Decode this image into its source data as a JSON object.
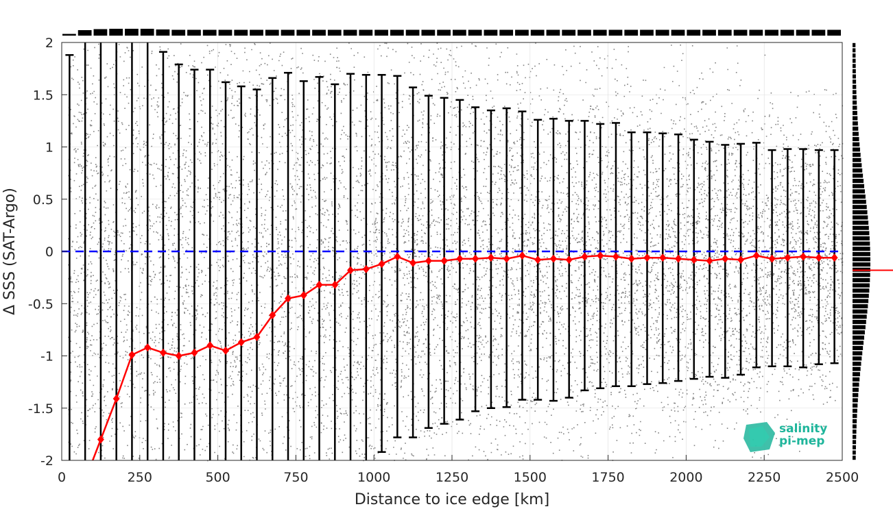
{
  "chart_data": {
    "type": "scatter",
    "title": "",
    "xlabel": "Distance to ice edge [km]",
    "ylabel": "Δ SSS (SAT-Argo)",
    "xlim": [
      0,
      2500
    ],
    "ylim": [
      -2,
      2
    ],
    "xticks": [
      0,
      250,
      500,
      750,
      1000,
      1250,
      1500,
      1750,
      2000,
      2250,
      2500
    ],
    "xtick_labels": [
      "0",
      "250",
      "500",
      "750",
      "1000",
      "1250",
      "1500",
      "1750",
      "2000",
      "2250",
      "2500"
    ],
    "yticks": [
      2,
      1.5,
      1,
      0.5,
      0,
      -0.5,
      -1,
      -1.5,
      -2
    ],
    "ytick_labels": [
      "2",
      "1.5",
      "1",
      "0.5",
      "0",
      "-0.5",
      "-1",
      "-1.5",
      "-2"
    ],
    "grid": true,
    "scatter_color": "#808080",
    "zero_line": {
      "y": 0,
      "color": "#0000ff",
      "style": "dashed"
    },
    "mean_series": {
      "color": "#ff0000",
      "x": [
        125,
        175,
        225,
        275,
        325,
        375,
        425,
        475,
        525,
        575,
        625,
        675,
        725,
        775,
        825,
        875,
        925,
        975,
        1025,
        1075,
        1125,
        1175,
        1225,
        1275,
        1325,
        1375,
        1425,
        1475,
        1525,
        1575,
        1625,
        1675,
        1725,
        1775,
        1825,
        1875,
        1925,
        1975,
        2025,
        2075,
        2125,
        2175,
        2225,
        2275,
        2325,
        2375,
        2425,
        2475
      ],
      "y": [
        -1.8,
        -1.41,
        -0.99,
        -0.92,
        -0.97,
        -1.0,
        -0.97,
        -0.9,
        -0.95,
        -0.87,
        -0.82,
        -0.61,
        -0.45,
        -0.42,
        -0.32,
        -0.32,
        -0.18,
        -0.17,
        -0.12,
        -0.05,
        -0.11,
        -0.09,
        -0.09,
        -0.07,
        -0.07,
        -0.06,
        -0.07,
        -0.04,
        -0.08,
        -0.07,
        -0.08,
        -0.05,
        -0.04,
        -0.05,
        -0.07,
        -0.06,
        -0.06,
        -0.07,
        -0.08,
        -0.09,
        -0.07,
        -0.08,
        -0.04,
        -0.07,
        -0.06,
        -0.05,
        -0.06,
        -0.06
      ]
    },
    "error_bars": {
      "color": "#000000",
      "x": [
        25,
        75,
        125,
        175,
        225,
        275,
        325,
        375,
        425,
        475,
        525,
        575,
        625,
        675,
        725,
        775,
        825,
        875,
        925,
        975,
        1025,
        1075,
        1125,
        1175,
        1225,
        1275,
        1325,
        1375,
        1425,
        1475,
        1525,
        1575,
        1625,
        1675,
        1725,
        1775,
        1825,
        1875,
        1925,
        1975,
        2025,
        2075,
        2125,
        2175,
        2225,
        2275,
        2325,
        2375,
        2425,
        2475
      ],
      "upper": [
        1.88,
        2.0,
        2.0,
        2.0,
        2.0,
        2.0,
        1.91,
        1.79,
        1.74,
        1.74,
        1.62,
        1.58,
        1.55,
        1.66,
        1.71,
        1.63,
        1.67,
        1.6,
        1.7,
        1.69,
        1.69,
        1.68,
        1.57,
        1.49,
        1.47,
        1.45,
        1.38,
        1.35,
        1.37,
        1.34,
        1.26,
        1.27,
        1.25,
        1.25,
        1.22,
        1.23,
        1.14,
        1.14,
        1.13,
        1.12,
        1.07,
        1.05,
        1.02,
        1.03,
        1.04,
        0.97,
        0.98,
        0.98,
        0.97,
        0.97
      ],
      "lower": [
        -2.0,
        -2.0,
        -2.0,
        -2.0,
        -2.0,
        -2.0,
        -2.0,
        -2.0,
        -2.0,
        -2.0,
        -2.0,
        -2.0,
        -2.0,
        -2.0,
        -2.0,
        -2.0,
        -2.0,
        -2.0,
        -2.0,
        -2.0,
        -1.92,
        -1.78,
        -1.78,
        -1.69,
        -1.65,
        -1.61,
        -1.53,
        -1.5,
        -1.49,
        -1.42,
        -1.42,
        -1.43,
        -1.4,
        -1.33,
        -1.31,
        -1.29,
        -1.29,
        -1.27,
        -1.26,
        -1.24,
        -1.22,
        -1.2,
        -1.21,
        -1.18,
        -1.11,
        -1.1,
        -1.1,
        -1.11,
        -1.08,
        -1.07
      ]
    },
    "top_histogram": {
      "orientation": "vertical",
      "relative_heights": [
        0.25,
        0.8,
        0.95,
        1.0,
        1.0,
        1.0,
        0.9,
        0.85,
        0.85,
        0.85,
        0.85,
        0.85,
        0.85,
        0.85,
        0.85,
        0.85,
        0.85,
        0.85,
        0.85,
        0.85,
        0.85,
        0.85,
        0.85,
        0.85,
        0.85,
        0.85,
        0.85,
        0.85,
        0.85,
        0.85,
        0.85,
        0.85,
        0.85,
        0.85,
        0.85,
        0.85,
        0.85,
        0.85,
        0.85,
        0.85,
        0.85,
        0.85,
        0.85,
        0.85,
        0.85,
        0.85,
        0.85,
        0.85,
        0.85,
        0.85
      ]
    },
    "right_histogram": {
      "orientation": "horizontal",
      "mean_marker": {
        "y": -0.18,
        "color": "#ff0000"
      }
    },
    "logo": {
      "line1": "salinity",
      "line2": "pi-mep",
      "color": "#1fb59b"
    }
  }
}
